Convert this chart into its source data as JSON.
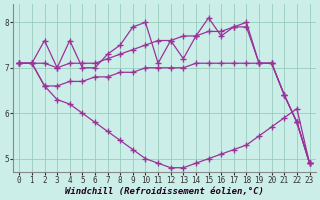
{
  "background_color": "#cceee8",
  "grid_color": "#99ccbb",
  "line_color": "#993399",
  "marker": "+",
  "markersize": 4,
  "linewidth": 0.9,
  "xlabel": "Windchill (Refroidissement éolien,°C)",
  "xlabel_fontsize": 6.5,
  "tick_fontsize": 5.5,
  "ylim": [
    4.7,
    8.4
  ],
  "xlim": [
    -0.5,
    23.5
  ],
  "yticks": [
    5,
    6,
    7,
    8
  ],
  "xticks": [
    0,
    1,
    2,
    3,
    4,
    5,
    6,
    7,
    8,
    9,
    10,
    11,
    12,
    13,
    14,
    15,
    16,
    17,
    18,
    19,
    20,
    21,
    22,
    23
  ],
  "series": [
    [
      7.1,
      7.1,
      7.6,
      7.0,
      7.6,
      7.0,
      7.0,
      7.3,
      7.5,
      7.9,
      8.0,
      7.1,
      7.6,
      7.2,
      7.7,
      8.1,
      7.7,
      7.9,
      7.9,
      7.1,
      7.1,
      6.4,
      5.8,
      4.9
    ],
    [
      7.1,
      7.1,
      7.1,
      7.0,
      7.1,
      7.1,
      7.1,
      7.2,
      7.3,
      7.4,
      7.5,
      7.6,
      7.6,
      7.7,
      7.7,
      7.8,
      7.8,
      7.9,
      8.0,
      7.1,
      7.1,
      6.4,
      5.8,
      4.9
    ],
    [
      7.1,
      7.1,
      6.6,
      6.6,
      6.7,
      6.7,
      6.8,
      6.8,
      6.9,
      6.9,
      7.0,
      7.0,
      7.0,
      7.0,
      7.1,
      7.1,
      7.1,
      7.1,
      7.1,
      7.1,
      7.1,
      6.4,
      5.8,
      4.9
    ],
    [
      7.1,
      7.1,
      6.6,
      6.3,
      6.2,
      6.0,
      5.8,
      5.6,
      5.4,
      5.2,
      5.0,
      4.9,
      4.8,
      4.8,
      4.9,
      5.0,
      5.1,
      5.2,
      5.3,
      5.5,
      5.7,
      5.9,
      6.1,
      4.9
    ]
  ]
}
